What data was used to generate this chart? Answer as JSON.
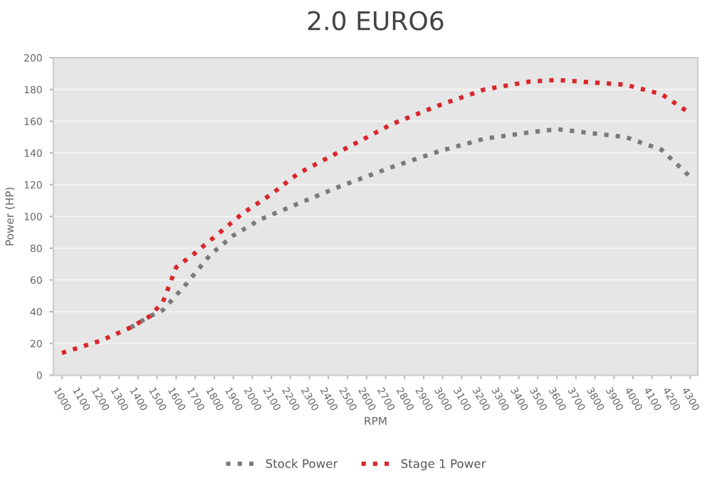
{
  "chart_data": {
    "type": "line",
    "title": "2.0 EURO6",
    "xlabel": "RPM",
    "ylabel": "Power (HP)",
    "series": [
      {
        "name": "Stock Power",
        "color": "#7a7a7a",
        "x": [
          1360,
          1460,
          1530,
          1650,
          1780,
          1900,
          2040,
          2240,
          2440,
          2620,
          2730,
          2980,
          3220,
          3460,
          3600,
          3960,
          4150,
          4300
        ],
        "values": [
          30,
          37,
          41,
          57,
          76,
          88,
          98,
          108,
          118,
          126,
          131,
          141,
          149,
          153,
          155,
          150,
          142,
          125
        ]
      },
      {
        "name": "Stage 1 Power",
        "color": "#d9262b",
        "x": [
          1000,
          1210,
          1360,
          1460,
          1530,
          1600,
          1700,
          1820,
          1950,
          2100,
          2240,
          2430,
          2620,
          2730,
          2980,
          3220,
          3460,
          3600,
          3960,
          4150,
          4300
        ],
        "values": [
          14,
          22,
          30,
          37,
          46,
          68,
          77,
          89,
          102,
          114,
          127,
          139,
          151,
          158,
          170,
          180,
          185,
          186,
          183,
          177,
          165
        ]
      }
    ],
    "xlim": [
      955,
      4340
    ],
    "xticks": [
      1000,
      1100,
      1200,
      1300,
      1400,
      1500,
      1600,
      1700,
      1800,
      1900,
      2000,
      2100,
      2200,
      2300,
      2400,
      2500,
      2600,
      2700,
      2800,
      2900,
      3000,
      3100,
      3200,
      3300,
      3400,
      3500,
      3600,
      3700,
      3800,
      3900,
      4000,
      4100,
      4200,
      4300
    ],
    "ylim": [
      0,
      200
    ],
    "yticks": [
      0,
      20,
      40,
      60,
      80,
      100,
      120,
      140,
      160,
      180,
      200
    ],
    "grid": "y",
    "legend": "bottom",
    "line_style": "dotted"
  }
}
